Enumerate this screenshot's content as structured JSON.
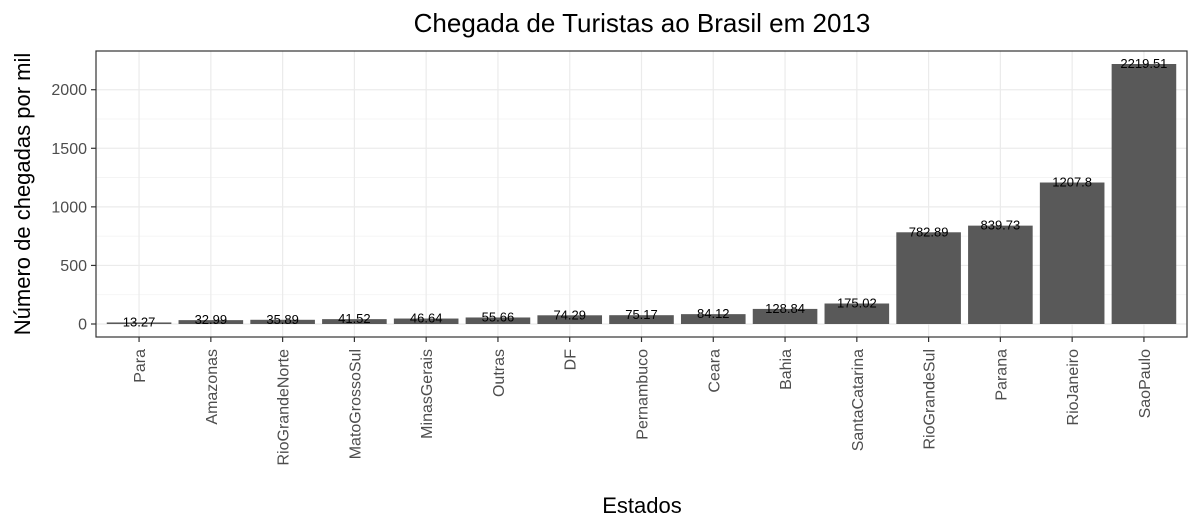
{
  "chart_data": {
    "type": "bar",
    "title": "Chegada de Turistas ao Brasil em 2013",
    "xlabel": "Estados",
    "ylabel": "Número de chegadas por mil",
    "categories": [
      "Para",
      "Amazonas",
      "RioGrandeNorte",
      "MatoGrossoSul",
      "MinasGerais",
      "Outras",
      "DF",
      "Pernambuco",
      "Ceara",
      "Bahia",
      "SantaCatarina",
      "RioGrandeSul",
      "Parana",
      "RioJaneiro",
      "SaoPaulo"
    ],
    "values": [
      13.27,
      32.99,
      35.89,
      41.52,
      46.64,
      55.66,
      74.29,
      75.17,
      84.12,
      128.84,
      175.02,
      782.89,
      839.73,
      1207.8,
      2219.51
    ],
    "data_labels": [
      "13.27",
      "32.99",
      "35.89",
      "41.52",
      "46.64",
      "55.66",
      "74.29",
      "75.17",
      "84.12",
      "128.84",
      "175.02",
      "782.89",
      "839.73",
      "1207.8",
      "2219.51"
    ],
    "yticks": [
      0,
      500,
      1000,
      1500,
      2000
    ],
    "ylim": [
      -110.98,
      2330.49
    ],
    "grid": true,
    "bar_color": "#595959"
  }
}
